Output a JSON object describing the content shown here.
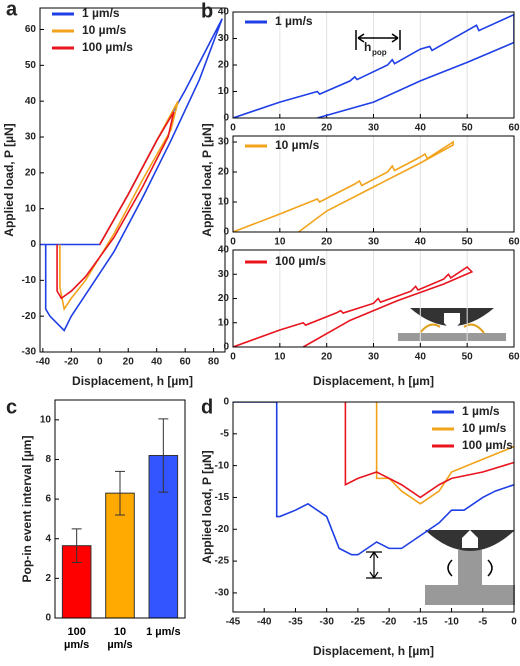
{
  "chart_data": [
    {
      "type": "line",
      "panel": "a",
      "xlabel": "Displacement, h [µm]",
      "ylabel": "Applied load, P [µN]",
      "xlim": [
        -42,
        88
      ],
      "xticks": [
        -40,
        -20,
        0,
        20,
        40,
        60,
        80
      ],
      "ylim": [
        -30,
        66
      ],
      "yticks": [
        -30,
        -20,
        -10,
        0,
        10,
        20,
        30,
        40,
        50,
        60
      ],
      "series": [
        {
          "name": "1 µm/s",
          "color": "#1f3fe6",
          "x": [
            -42,
            0,
            20,
            40,
            60,
            86,
            70,
            50,
            30,
            10,
            -10,
            -20,
            -25,
            -30,
            -35,
            -38,
            -38
          ],
          "values": [
            0,
            0,
            14,
            29,
            43,
            63,
            46,
            29,
            13,
            -2,
            -14,
            -20,
            -24,
            -22,
            -20,
            -18,
            0
          ]
        },
        {
          "name": "10 µm/s",
          "color": "#f2a31b",
          "x": [
            0,
            20,
            40,
            55,
            50,
            30,
            10,
            -10,
            -20,
            -25,
            -28,
            -28
          ],
          "values": [
            0,
            14,
            29,
            40,
            32,
            18,
            3,
            -10,
            -15,
            -18,
            -12,
            0
          ]
        },
        {
          "name": "100 µm/s",
          "color": "#e8141e",
          "x": [
            0,
            20,
            40,
            52,
            48,
            30,
            10,
            -10,
            -20,
            -27,
            -30,
            -30
          ],
          "values": [
            0,
            14,
            29,
            37,
            30,
            16,
            2,
            -9,
            -13,
            -15,
            -13,
            0
          ]
        }
      ]
    },
    {
      "type": "line",
      "panel": "b",
      "ylabel": "Applied load, P [µN]",
      "grid": "x",
      "annotation": {
        "main": "h",
        "sub": "pop"
      },
      "xlim": [
        0,
        60
      ],
      "xticks": [
        0,
        10,
        20,
        30,
        40,
        50,
        60
      ],
      "ylim": [
        0,
        40
      ],
      "yticks": [
        0,
        10,
        20,
        30,
        40
      ],
      "series": [
        {
          "name": "1 µm/s",
          "color": "#1f3fe6",
          "x": [
            0,
            10,
            18,
            18.5,
            25,
            26,
            26.5,
            33,
            34,
            34.5,
            40,
            42,
            42.5,
            50,
            52,
            52.5,
            60,
            60,
            50,
            40,
            30,
            18
          ],
          "values": [
            0,
            6,
            10,
            9,
            14,
            15.5,
            14.5,
            20,
            22,
            20.5,
            26,
            27,
            25.5,
            33,
            35,
            33,
            39,
            28.5,
            21,
            14,
            6,
            0
          ]
        }
      ]
    },
    {
      "type": "line",
      "grid": "x",
      "xlim": [
        0,
        60
      ],
      "xticks": [
        0,
        10,
        20,
        30,
        40,
        50,
        60
      ],
      "ylim": [
        0,
        32
      ],
      "yticks": [
        0,
        10,
        20,
        30
      ],
      "series": [
        {
          "name": "10 µm/s",
          "color": "#f2a31b",
          "x": [
            0,
            10,
            18,
            18.5,
            26,
            27,
            27.5,
            33,
            34,
            34.5,
            40,
            41,
            41.5,
            47,
            47,
            40,
            30,
            20,
            14
          ],
          "values": [
            0,
            6,
            11,
            10,
            16,
            17,
            15.5,
            20,
            22,
            20.5,
            25,
            26,
            24.5,
            30,
            29,
            23,
            15,
            7,
            0
          ]
        }
      ]
    },
    {
      "type": "line",
      "grid": "x",
      "xlabel": "Displacement, h [µm]",
      "xlim": [
        0,
        60
      ],
      "xticks": [
        0,
        10,
        20,
        30,
        40,
        50,
        60
      ],
      "ylim": [
        0,
        40
      ],
      "yticks": [
        0,
        10,
        20,
        30,
        40
      ],
      "series": [
        {
          "name": "100 µm/s",
          "color": "#e8141e",
          "x": [
            0,
            10,
            15,
            15.5,
            22,
            23,
            23.5,
            30,
            31,
            31.5,
            38,
            39,
            39.5,
            45,
            46,
            46.5,
            50,
            51,
            45,
            35,
            25,
            15
          ],
          "values": [
            0,
            7,
            10,
            9,
            14,
            15,
            14,
            18,
            20,
            18.5,
            23,
            25,
            23.5,
            28,
            30,
            28.5,
            33,
            31,
            26,
            19,
            11,
            0
          ]
        }
      ]
    },
    {
      "type": "bar",
      "panel": "c",
      "ylabel": "Pop-in event interval [µm]",
      "categories": [
        "100 µm/s",
        "10 µm/s",
        "1 µm/s"
      ],
      "values": [
        3.65,
        6.3,
        8.2
      ],
      "errors": [
        0.85,
        1.1,
        1.85
      ],
      "colors": [
        "#ff0000",
        "#ffaa00",
        "#3355ff"
      ],
      "ylim": [
        0,
        11
      ],
      "yticks": [
        0,
        2,
        4,
        6,
        8,
        10
      ]
    },
    {
      "type": "line",
      "panel": "d",
      "xlabel": "Displacement, h [µm]",
      "ylabel": "Applied load, P [µN]",
      "xlim": [
        -45,
        0
      ],
      "xticks": [
        -45,
        -40,
        -35,
        -30,
        -25,
        -20,
        -15,
        -10,
        -5,
        0
      ],
      "ylim": [
        -33,
        0
      ],
      "yticks": [
        -30,
        -25,
        -20,
        -15,
        -10,
        -5,
        0
      ],
      "series": [
        {
          "name": "1 µm/s",
          "color": "#1f3fe6",
          "x": [
            -45,
            -38,
            -38,
            -37.5,
            -35,
            -33,
            -30,
            -28,
            -26,
            -25,
            -22,
            -20,
            -18,
            -15,
            -12,
            -10,
            -8,
            -5,
            -3,
            0
          ],
          "values": [
            0,
            0,
            -18,
            -18,
            -17,
            -16,
            -18,
            -23,
            -24,
            -24,
            -22,
            -23,
            -23,
            -21,
            -19,
            -17,
            -17,
            -15,
            -14,
            -13
          ]
        },
        {
          "name": "10 µm/s",
          "color": "#f2a31b",
          "x": [
            -22,
            -22,
            -20,
            -18,
            -15,
            -12,
            -10,
            -5,
            0
          ],
          "values": [
            0,
            -12,
            -12,
            -14,
            -16,
            -14,
            -11,
            -9,
            -7
          ]
        },
        {
          "name": "100 µm/s",
          "color": "#e8141e",
          "x": [
            -27,
            -27,
            -25,
            -22,
            -20,
            -18,
            -15,
            -12,
            -10,
            -5,
            0
          ],
          "values": [
            0,
            -13,
            -12,
            -11,
            -12,
            -13,
            -15,
            -13,
            -12,
            -11,
            -9.5
          ]
        }
      ]
    }
  ]
}
